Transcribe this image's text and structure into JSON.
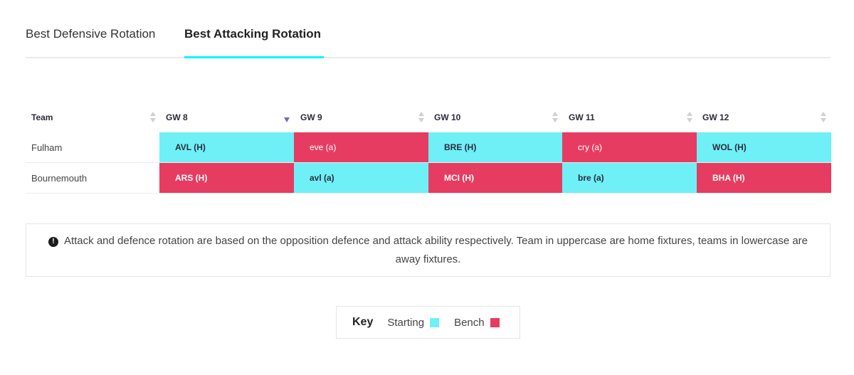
{
  "tabs": [
    {
      "label": "Best Defensive Rotation",
      "active": false
    },
    {
      "label": "Best Attacking Rotation",
      "active": true
    }
  ],
  "table": {
    "headers": [
      "Team",
      "GW 8",
      "GW 9",
      "GW 10",
      "GW 11",
      "GW 12"
    ],
    "sorted_column": "GW 8",
    "rows": [
      {
        "team": "Fulham",
        "fixtures": [
          {
            "label": "AVL (H)",
            "status": "starting"
          },
          {
            "label": "eve (a)",
            "status": "bench"
          },
          {
            "label": "BRE (H)",
            "status": "starting"
          },
          {
            "label": "cry (a)",
            "status": "bench"
          },
          {
            "label": "WOL (H)",
            "status": "starting"
          }
        ]
      },
      {
        "team": "Bournemouth",
        "fixtures": [
          {
            "label": "ARS (H)",
            "status": "bench"
          },
          {
            "label": "avl (a)",
            "status": "starting"
          },
          {
            "label": "MCI (H)",
            "status": "bench"
          },
          {
            "label": "bre (a)",
            "status": "starting"
          },
          {
            "label": "BHA (H)",
            "status": "bench"
          }
        ]
      }
    ]
  },
  "info": {
    "icon": "exclamation-circle-icon",
    "text": "Attack and defence rotation are based on the opposition defence and attack ability respectively. Team in uppercase are home fixtures, teams in lowercase are away fixtures."
  },
  "key": {
    "title": "Key",
    "items": [
      {
        "label": "Starting",
        "color": "#6ff0f6"
      },
      {
        "label": "Bench",
        "color": "#e63c61"
      }
    ]
  },
  "colors": {
    "starting": "#6ff0f6",
    "bench": "#e63c61",
    "accent": "#04f5ff"
  }
}
